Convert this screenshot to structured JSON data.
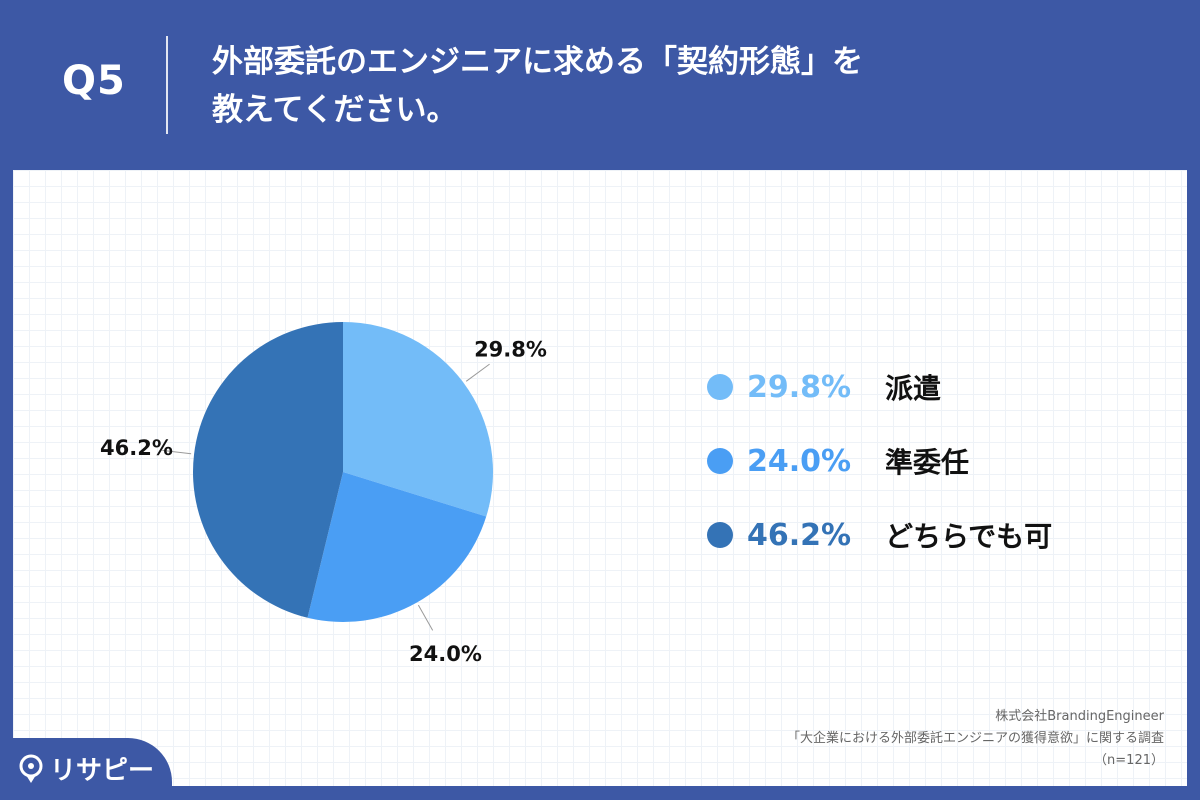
{
  "header": {
    "q_label": "Q5",
    "question_line1": "外部委託のエンジニアに求める「契約形態」を",
    "question_line2": "教えてください。"
  },
  "chart_data": {
    "type": "pie",
    "slices": [
      {
        "name": "派遣",
        "value": 29.8,
        "label": "29.8%",
        "color": "#73bcf8"
      },
      {
        "name": "準委任",
        "value": 24.0,
        "label": "24.0%",
        "color": "#4a9ef4"
      },
      {
        "name": "どちらでも可",
        "value": 46.2,
        "label": "46.2%",
        "color": "#3473b6"
      }
    ]
  },
  "legend": [
    {
      "value": "29.8%",
      "name": "派遣",
      "color": "#73bcf8"
    },
    {
      "value": "24.0%",
      "name": "準委任",
      "color": "#4a9ef4"
    },
    {
      "value": "46.2%",
      "name": "どちらでも可",
      "color": "#3473b6"
    }
  ],
  "source": {
    "company": "株式会社BrandingEngineer",
    "survey": "「大企業における外部委託エンジニアの獲得意欲」に関する調査",
    "sample": "（n=121）"
  },
  "logo": {
    "text": "リサピー",
    "icon": "map-pin-icon"
  }
}
